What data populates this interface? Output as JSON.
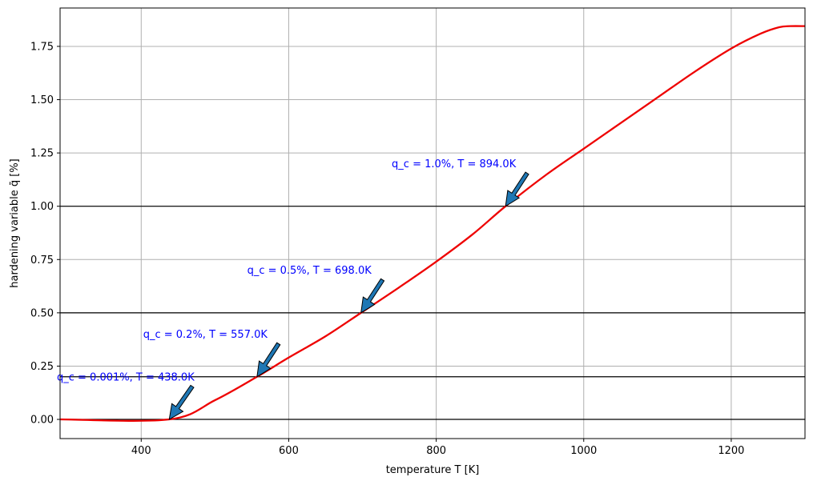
{
  "chart_data": {
    "type": "line",
    "xlabel": "temperature T [K]",
    "ylabel": "hardening variable q̄ [%]",
    "xlim": [
      290,
      1300
    ],
    "ylim": [
      -0.09,
      1.93
    ],
    "grid": true,
    "x_ticks": [
      400,
      600,
      800,
      1000,
      1200
    ],
    "y_ticks": [
      0.0,
      0.25,
      0.5,
      0.75,
      1.0,
      1.25,
      1.5,
      1.75
    ],
    "x_tick_labels": [
      "400",
      "600",
      "800",
      "1000",
      "1200"
    ],
    "y_tick_labels": [
      "0.00",
      "0.25",
      "0.50",
      "0.75",
      "1.00",
      "1.25",
      "1.50",
      "1.75"
    ],
    "series": [
      {
        "color": "#ee0000",
        "x": [
          290,
          438,
          500,
          557,
          600,
          650,
          698,
          750,
          800,
          850,
          894,
          950,
          1000,
          1050,
          1100,
          1150,
          1200,
          1240,
          1265,
          1280,
          1300
        ],
        "y": [
          0.0,
          0.0,
          0.09,
          0.2,
          0.29,
          0.39,
          0.5,
          0.62,
          0.74,
          0.87,
          1.0,
          1.15,
          1.27,
          1.39,
          1.51,
          1.63,
          1.74,
          1.81,
          1.84,
          1.845,
          1.845
        ]
      }
    ],
    "hlines": [
      0.0,
      0.2,
      0.5,
      1.0
    ],
    "annotations": [
      {
        "label": "q_c = 0.001%, T = 438.0K",
        "point": [
          438,
          0.0
        ],
        "text_at": [
          290,
          0.2
        ]
      },
      {
        "label": "q_c = 0.2%, T = 557.0K",
        "point": [
          557,
          0.2
        ],
        "text_at": [
          407,
          0.4
        ]
      },
      {
        "label": "q_c = 0.5%, T = 698.0K",
        "point": [
          698,
          0.5
        ],
        "text_at": [
          548,
          0.7
        ]
      },
      {
        "label": "q_c = 1.0%, T = 894.0K",
        "point": [
          894,
          1.0
        ],
        "text_at": [
          744,
          1.2
        ]
      }
    ]
  }
}
